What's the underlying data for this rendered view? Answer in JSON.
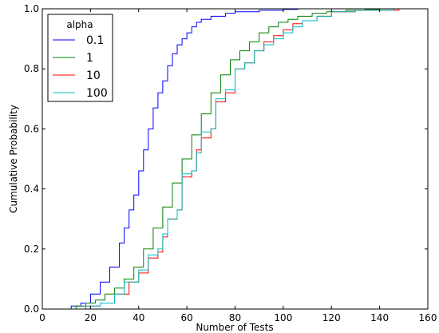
{
  "chart_data": {
    "type": "line",
    "title": "",
    "xlabel": "Number of Tests",
    "ylabel": "Cumulative Probability",
    "xlim": [
      0,
      160
    ],
    "ylim": [
      0,
      1.0
    ],
    "x_ticks": [
      0,
      20,
      40,
      60,
      80,
      100,
      120,
      140,
      160
    ],
    "y_ticks": [
      0.0,
      0.2,
      0.4,
      0.6,
      0.8,
      1.0
    ],
    "x_tick_labels": [
      "0",
      "20",
      "40",
      "60",
      "80",
      "100",
      "120",
      "140",
      "160"
    ],
    "y_tick_labels": [
      "0.0",
      "0.2",
      "0.4",
      "0.6",
      "0.8",
      "1.0"
    ],
    "grid": false,
    "step": true,
    "legend": {
      "title": "alpha",
      "position": "top-left"
    },
    "series": [
      {
        "name": "0.1",
        "color": "#0000ff",
        "x": [
          8,
          12,
          16,
          20,
          24,
          28,
          32,
          34,
          36,
          38,
          40,
          42,
          44,
          46,
          48,
          50,
          52,
          54,
          56,
          58,
          60,
          62,
          64,
          66,
          70,
          76,
          80,
          90,
          100,
          106
        ],
        "y": [
          0.0,
          0.01,
          0.02,
          0.05,
          0.09,
          0.14,
          0.22,
          0.27,
          0.33,
          0.38,
          0.46,
          0.53,
          0.6,
          0.67,
          0.72,
          0.76,
          0.81,
          0.85,
          0.88,
          0.9,
          0.92,
          0.94,
          0.955,
          0.965,
          0.975,
          0.985,
          0.99,
          0.995,
          0.998,
          1.0
        ]
      },
      {
        "name": "1",
        "color": "#008000",
        "x": [
          10,
          14,
          18,
          22,
          26,
          30,
          34,
          38,
          42,
          46,
          50,
          54,
          58,
          62,
          66,
          70,
          74,
          78,
          82,
          86,
          90,
          94,
          98,
          102,
          106,
          112,
          118,
          126,
          134,
          140
        ],
        "y": [
          0.0,
          0.01,
          0.02,
          0.03,
          0.05,
          0.07,
          0.1,
          0.14,
          0.2,
          0.27,
          0.34,
          0.42,
          0.5,
          0.58,
          0.65,
          0.72,
          0.78,
          0.83,
          0.86,
          0.89,
          0.92,
          0.94,
          0.955,
          0.965,
          0.975,
          0.985,
          0.99,
          0.995,
          0.998,
          1.0
        ]
      },
      {
        "name": "10",
        "color": "#ff0000",
        "x": [
          12,
          18,
          24,
          30,
          36,
          40,
          44,
          48,
          50,
          52,
          56,
          58,
          62,
          64,
          66,
          70,
          72,
          76,
          80,
          84,
          88,
          92,
          96,
          100,
          104,
          108,
          114,
          120,
          130,
          148
        ],
        "y": [
          0.0,
          0.01,
          0.02,
          0.05,
          0.09,
          0.12,
          0.17,
          0.19,
          0.24,
          0.3,
          0.33,
          0.44,
          0.46,
          0.53,
          0.57,
          0.6,
          0.69,
          0.72,
          0.8,
          0.82,
          0.86,
          0.89,
          0.91,
          0.93,
          0.95,
          0.96,
          0.975,
          0.99,
          0.995,
          1.0
        ]
      },
      {
        "name": "100",
        "color": "#00bfbf",
        "x": [
          12,
          18,
          24,
          30,
          34,
          40,
          44,
          48,
          50,
          52,
          56,
          58,
          62,
          64,
          66,
          70,
          72,
          76,
          80,
          84,
          88,
          92,
          96,
          100,
          104,
          108,
          114,
          120,
          130,
          146
        ],
        "y": [
          0.0,
          0.01,
          0.02,
          0.05,
          0.09,
          0.13,
          0.18,
          0.2,
          0.25,
          0.3,
          0.33,
          0.45,
          0.46,
          0.52,
          0.59,
          0.6,
          0.7,
          0.73,
          0.8,
          0.82,
          0.86,
          0.88,
          0.9,
          0.92,
          0.94,
          0.96,
          0.975,
          0.99,
          0.995,
          1.0
        ]
      }
    ]
  }
}
